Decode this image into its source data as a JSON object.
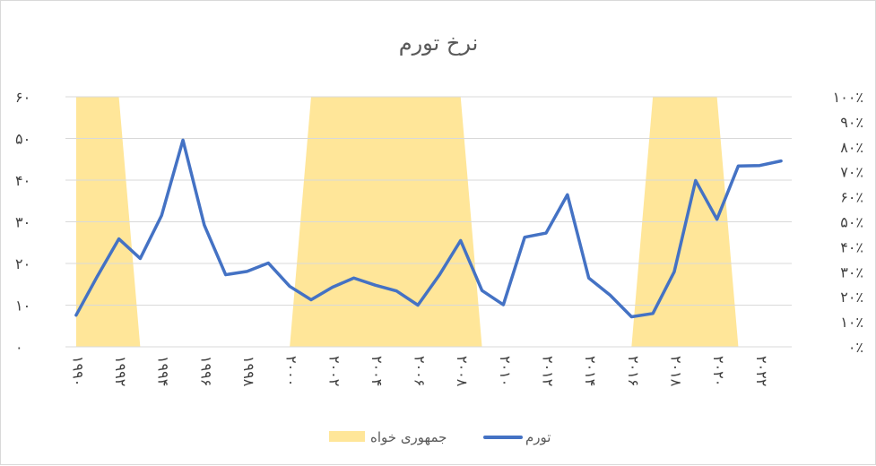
{
  "chart_data": {
    "type": "line",
    "title": "نرخ تورم",
    "x": [
      1990,
      1991,
      1992,
      1993,
      1994,
      1995,
      1996,
      1997,
      1998,
      1999,
      2000,
      2001,
      2002,
      2003,
      2004,
      2005,
      2006,
      2007,
      2008,
      2009,
      2010,
      2011,
      2012,
      2013,
      2014,
      2015,
      2016,
      2017,
      2018,
      2019,
      2020,
      2021,
      2022,
      2023
    ],
    "x_tick_labels": [
      "۱۹۹۰",
      "۱۹۹۲",
      "۱۹۹۴",
      "۱۹۹۶",
      "۱۹۹۸",
      "۲۰۰۰",
      "۲۰۰۲",
      "۲۰۰۴",
      "۲۰۰۶",
      "۲۰۰۸",
      "۲۰۱۰",
      "۲۰۱۲",
      "۲۰۱۴",
      "۲۰۱۶",
      "۲۰۱۸",
      "۲۰۲۰",
      "۲۰۲۲"
    ],
    "y_left": {
      "ticks": [
        "۰",
        "۱۰",
        "۲۰",
        "۳۰",
        "۴۰",
        "۵۰",
        "۶۰"
      ],
      "range": [
        0,
        60
      ]
    },
    "y_right": {
      "ticks": [
        "۰٪",
        "۱۰٪",
        "۲۰٪",
        "۳۰٪",
        "۴۰٪",
        "۵۰٪",
        "۶۰٪",
        "۷۰٪",
        "۸۰٪",
        "۹۰٪",
        "۱۰۰٪"
      ],
      "range": [
        0,
        100
      ]
    },
    "series": [
      {
        "name": "تورم",
        "type": "line",
        "axis": "left",
        "color": "#4472c4",
        "values": [
          7.6,
          17,
          25.9,
          21.2,
          31.5,
          49.6,
          29.2,
          17.3,
          18.1,
          20.1,
          14.5,
          11.3,
          14.3,
          16.5,
          14.8,
          13.4,
          10,
          17.2,
          25.5,
          13.5,
          10.1,
          26.3,
          27.3,
          36.5,
          16.5,
          12.4,
          7.2,
          8,
          18,
          39.9,
          30.6,
          43.4,
          43.5,
          44.6
        ]
      },
      {
        "name": "جمهوری خواه",
        "type": "area",
        "axis": "right",
        "color": "#ffe699",
        "values": [
          100,
          100,
          100,
          0,
          0,
          0,
          0,
          0,
          0,
          0,
          0,
          100,
          100,
          100,
          100,
          100,
          100,
          100,
          100,
          0,
          0,
          0,
          0,
          0,
          0,
          0,
          0,
          100,
          100,
          100,
          100,
          0,
          0,
          0
        ]
      }
    ],
    "legend": {
      "position": "bottom"
    },
    "grid": {
      "horizontal": true,
      "vertical": false
    }
  }
}
